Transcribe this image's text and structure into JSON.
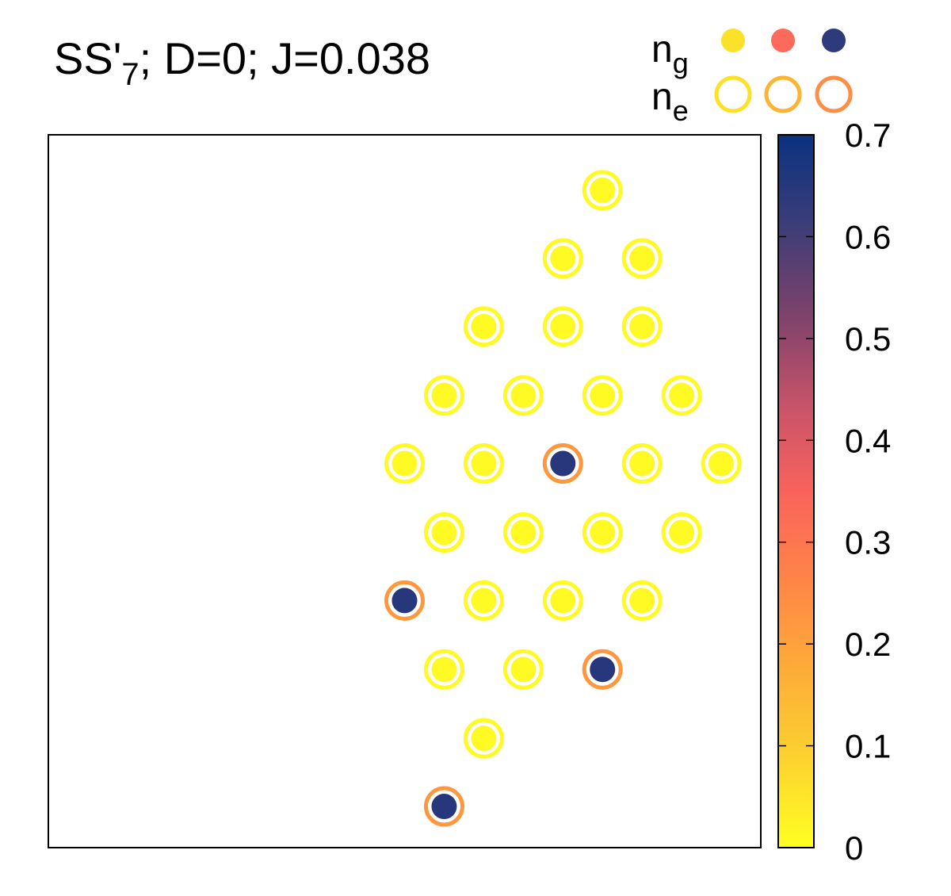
{
  "title": {
    "prefix": "SS'",
    "subscript": "7",
    "suffix": "; D=0; J=0.038"
  },
  "legend": {
    "placement": "top-right",
    "ng_label": {
      "base": "n",
      "sub": "g"
    },
    "ne_label": {
      "base": "n",
      "sub": "e"
    },
    "ng_colors": [
      "#fbe12a",
      "#fd6a5b",
      "#2d3a7b"
    ],
    "ne_colors": [
      "#fbe12a",
      "#fbb534",
      "#fb8f48"
    ]
  },
  "chart_data": {
    "type": "scatter",
    "description_of_encoding": "",
    "xlim": [
      -4.5,
      4.5
    ],
    "ylim": [
      0,
      9
    ],
    "grid": false,
    "sites": [
      {
        "x": 2.5,
        "y": 8.3,
        "ng": 0.01,
        "ne": 0.01
      },
      {
        "x": 2.0,
        "y": 7.44,
        "ng": 0.01,
        "ne": 0.01
      },
      {
        "x": 3.0,
        "y": 7.44,
        "ng": 0.01,
        "ne": 0.01
      },
      {
        "x": 1.0,
        "y": 6.58,
        "ng": 0.01,
        "ne": 0.01
      },
      {
        "x": 2.0,
        "y": 6.58,
        "ng": 0.01,
        "ne": 0.01
      },
      {
        "x": 3.0,
        "y": 6.58,
        "ng": 0.01,
        "ne": 0.01
      },
      {
        "x": 0.5,
        "y": 5.71,
        "ng": 0.01,
        "ne": 0.01
      },
      {
        "x": 1.5,
        "y": 5.71,
        "ng": 0.01,
        "ne": 0.01
      },
      {
        "x": 2.5,
        "y": 5.71,
        "ng": 0.01,
        "ne": 0.01
      },
      {
        "x": 3.5,
        "y": 5.71,
        "ng": 0.01,
        "ne": 0.01
      },
      {
        "x": 0.0,
        "y": 4.85,
        "ng": 0.01,
        "ne": 0.01
      },
      {
        "x": 1.0,
        "y": 4.85,
        "ng": 0.01,
        "ne": 0.01
      },
      {
        "x": 2.0,
        "y": 4.85,
        "ng": 0.65,
        "ne": 0.22
      },
      {
        "x": 3.0,
        "y": 4.85,
        "ng": 0.01,
        "ne": 0.01
      },
      {
        "x": 4.0,
        "y": 4.85,
        "ng": 0.01,
        "ne": 0.01
      },
      {
        "x": 0.5,
        "y": 3.98,
        "ng": 0.01,
        "ne": 0.01
      },
      {
        "x": 1.5,
        "y": 3.98,
        "ng": 0.01,
        "ne": 0.01
      },
      {
        "x": 2.5,
        "y": 3.98,
        "ng": 0.01,
        "ne": 0.01
      },
      {
        "x": 3.5,
        "y": 3.98,
        "ng": 0.01,
        "ne": 0.01
      },
      {
        "x": 0.0,
        "y": 3.12,
        "ng": 0.65,
        "ne": 0.22
      },
      {
        "x": 1.0,
        "y": 3.12,
        "ng": 0.01,
        "ne": 0.01
      },
      {
        "x": 2.0,
        "y": 3.12,
        "ng": 0.01,
        "ne": 0.01
      },
      {
        "x": 3.0,
        "y": 3.12,
        "ng": 0.01,
        "ne": 0.01
      },
      {
        "x": 0.5,
        "y": 2.25,
        "ng": 0.01,
        "ne": 0.01
      },
      {
        "x": 1.5,
        "y": 2.25,
        "ng": 0.01,
        "ne": 0.01
      },
      {
        "x": 2.5,
        "y": 2.25,
        "ng": 0.65,
        "ne": 0.22
      },
      {
        "x": 1.0,
        "y": 1.38,
        "ng": 0.01,
        "ne": 0.01
      },
      {
        "x": 0.5,
        "y": 0.52,
        "ng": 0.65,
        "ne": 0.22
      }
    ],
    "colorbar": {
      "range": [
        0,
        0.7
      ],
      "ticks": [
        "0",
        "0.1",
        "0.2",
        "0.3",
        "0.4",
        "0.5",
        "0.6",
        "0.7"
      ],
      "tick_values": [
        0,
        0.1,
        0.2,
        0.3,
        0.4,
        0.5,
        0.6,
        0.7
      ],
      "colormap": [
        "#ffff22",
        "#fcd22f",
        "#fdac38",
        "#ff8547",
        "#f9625c",
        "#c5536a",
        "#7c426b",
        "#3b3d78",
        "#0a3280"
      ]
    }
  }
}
